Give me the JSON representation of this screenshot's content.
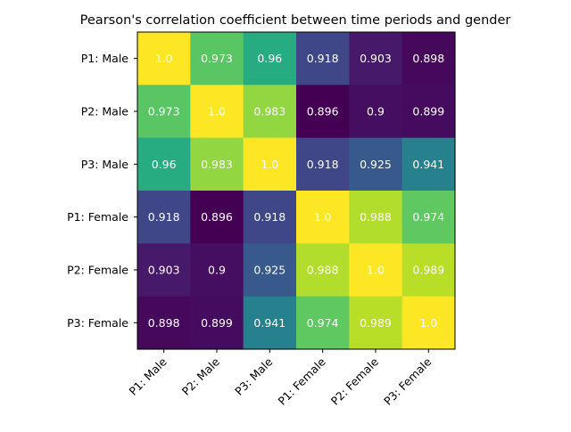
{
  "chart_data": {
    "type": "heatmap",
    "title": "Pearson's correlation coefficient between time periods and gender",
    "xlabel": "",
    "ylabel": "",
    "colormap": "viridis",
    "value_range": [
      0.896,
      1.0
    ],
    "x_categories": [
      "P1: Male",
      "P2: Male",
      "P3: Male",
      "P1: Female",
      "P2: Female",
      "P3: Female"
    ],
    "y_categories": [
      "P1: Male",
      "P2: Male",
      "P3: Male",
      "P1: Female",
      "P2: Female",
      "P3: Female"
    ],
    "values": [
      [
        1.0,
        0.973,
        0.96,
        0.918,
        0.903,
        0.898
      ],
      [
        0.973,
        1.0,
        0.983,
        0.896,
        0.9,
        0.899
      ],
      [
        0.96,
        0.983,
        1.0,
        0.918,
        0.925,
        0.941
      ],
      [
        0.918,
        0.896,
        0.918,
        1.0,
        0.988,
        0.974
      ],
      [
        0.903,
        0.9,
        0.925,
        0.988,
        1.0,
        0.989
      ],
      [
        0.898,
        0.899,
        0.941,
        0.974,
        0.989,
        1.0
      ]
    ],
    "cell_labels": [
      [
        "1.0",
        "0.973",
        "0.96",
        "0.918",
        "0.903",
        "0.898"
      ],
      [
        "0.973",
        "1.0",
        "0.983",
        "0.896",
        "0.9",
        "0.899"
      ],
      [
        "0.96",
        "0.983",
        "1.0",
        "0.918",
        "0.925",
        "0.941"
      ],
      [
        "0.918",
        "0.896",
        "0.918",
        "1.0",
        "0.988",
        "0.974"
      ],
      [
        "0.903",
        "0.9",
        "0.925",
        "0.988",
        "1.0",
        "0.989"
      ],
      [
        "0.898",
        "0.899",
        "0.941",
        "0.974",
        "0.989",
        "1.0"
      ]
    ],
    "label_color": "#ffffff",
    "grid": false,
    "legend": false
  }
}
